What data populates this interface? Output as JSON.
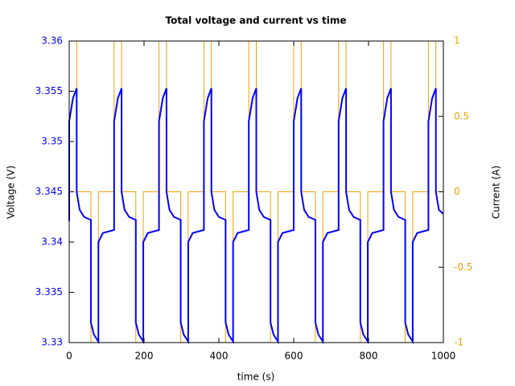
{
  "chart_data": {
    "type": "line",
    "title": "Total voltage and current vs time",
    "xlabel": "time (s)",
    "ylabel": "Voltage (V)",
    "y2label": "Current (A)",
    "x": [
      0,
      0,
      10,
      20,
      20,
      28,
      40,
      58,
      58,
      66,
      78,
      78,
      90,
      120,
      120,
      130,
      140,
      140,
      148,
      160,
      178,
      178,
      186,
      198,
      198,
      210,
      240,
      240,
      250,
      260,
      260,
      268,
      280,
      298,
      298,
      306,
      318,
      318,
      330,
      360,
      360,
      370,
      380,
      380,
      388,
      400,
      418,
      418,
      426,
      438,
      438,
      450,
      480,
      480,
      490,
      500,
      500,
      508,
      520,
      538,
      538,
      546,
      558,
      558,
      570,
      600,
      600,
      610,
      620,
      620,
      628,
      640,
      658,
      658,
      666,
      678,
      678,
      690,
      720,
      720,
      730,
      740,
      740,
      748,
      760,
      778,
      778,
      786,
      798,
      798,
      810,
      840,
      840,
      850,
      860,
      860,
      868,
      880,
      898,
      898,
      906,
      918,
      918,
      930,
      960,
      960,
      970,
      980,
      980,
      988,
      1000
    ],
    "series": [
      {
        "name": "Voltage",
        "color": "#0000ff",
        "axis": "y",
        "values": [
          3.3421,
          3.352,
          3.3543,
          3.3553,
          3.345,
          3.3432,
          3.3425,
          3.3422,
          3.332,
          3.3308,
          3.3301,
          3.34,
          3.3409,
          3.3412,
          3.352,
          3.3543,
          3.3553,
          3.345,
          3.3432,
          3.3425,
          3.3422,
          3.332,
          3.3308,
          3.3301,
          3.34,
          3.3409,
          3.3412,
          3.352,
          3.3543,
          3.3553,
          3.345,
          3.3432,
          3.3425,
          3.3422,
          3.332,
          3.3308,
          3.3301,
          3.34,
          3.3409,
          3.3412,
          3.352,
          3.3543,
          3.3553,
          3.345,
          3.3432,
          3.3425,
          3.3422,
          3.332,
          3.3308,
          3.3301,
          3.34,
          3.3409,
          3.3412,
          3.352,
          3.3543,
          3.3553,
          3.345,
          3.3432,
          3.3425,
          3.3422,
          3.332,
          3.3308,
          3.3301,
          3.34,
          3.3409,
          3.3412,
          3.352,
          3.3543,
          3.3553,
          3.345,
          3.3432,
          3.3425,
          3.3422,
          3.332,
          3.3308,
          3.3301,
          3.34,
          3.3409,
          3.3412,
          3.352,
          3.3543,
          3.3553,
          3.345,
          3.3432,
          3.3425,
          3.3422,
          3.332,
          3.3308,
          3.3301,
          3.34,
          3.3409,
          3.3412,
          3.352,
          3.3543,
          3.3553,
          3.345,
          3.3432,
          3.3425,
          3.3422,
          3.332,
          3.3308,
          3.3301,
          3.34,
          3.3409,
          3.3412,
          3.352,
          3.3543,
          3.3553,
          3.345,
          3.3432,
          3.3428
        ]
      },
      {
        "name": "Current",
        "color": "#f0a000",
        "axis": "y2",
        "values": [
          0,
          1,
          1,
          1,
          0,
          0,
          0,
          0,
          -1,
          -1,
          -1,
          0,
          0,
          0,
          1,
          1,
          1,
          0,
          0,
          0,
          0,
          -1,
          -1,
          -1,
          0,
          0,
          0,
          1,
          1,
          1,
          0,
          0,
          0,
          0,
          -1,
          -1,
          -1,
          0,
          0,
          0,
          1,
          1,
          1,
          0,
          0,
          0,
          0,
          -1,
          -1,
          -1,
          0,
          0,
          0,
          1,
          1,
          1,
          0,
          0,
          0,
          0,
          -1,
          -1,
          -1,
          0,
          0,
          0,
          1,
          1,
          1,
          0,
          0,
          0,
          0,
          -1,
          -1,
          -1,
          0,
          0,
          0,
          1,
          1,
          1,
          0,
          0,
          0,
          0,
          -1,
          -1,
          -1,
          0,
          0,
          0,
          1,
          1,
          1,
          0,
          0,
          0,
          0,
          -1,
          -1,
          -1,
          0,
          0,
          0,
          1,
          1,
          1,
          0,
          0,
          0
        ]
      }
    ],
    "xlim": [
      0,
      1000
    ],
    "xticks": [
      0,
      200,
      400,
      600,
      800,
      1000
    ],
    "ylim": [
      3.33,
      3.36
    ],
    "yticks": [
      3.33,
      3.335,
      3.34,
      3.345,
      3.35,
      3.355,
      3.36
    ],
    "y2lim": [
      -1,
      1
    ],
    "y2ticks": [
      -1,
      -0.5,
      0,
      0.5,
      1
    ],
    "grid": false
  }
}
